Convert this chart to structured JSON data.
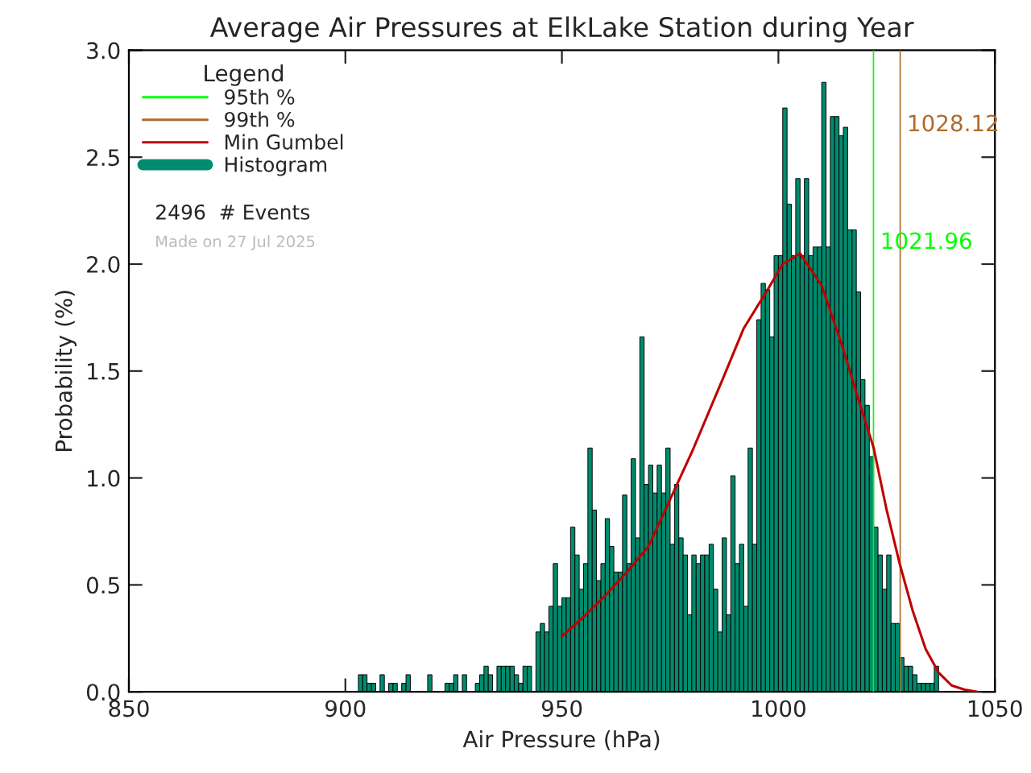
{
  "chart_data": {
    "type": "histogram",
    "title": "Average Air Pressures at ElkLake Station during Year",
    "xlabel": "Air Pressure (hPa)",
    "ylabel": "Probability (%)",
    "legend_title": "Legend",
    "legend": "top left",
    "grid": false,
    "xlim": [
      850,
      1050
    ],
    "xticks": [
      850,
      900,
      950,
      1000,
      1050
    ],
    "ylim": [
      0,
      3.0
    ],
    "yticks": [
      {
        "value": 0,
        "label": "0.0"
      },
      {
        "value": 0.5,
        "label": "0.5"
      },
      {
        "value": 1.0,
        "label": "1.0"
      },
      {
        "value": 1.5,
        "label": "1.5"
      },
      {
        "value": 2.0,
        "label": "2.0"
      },
      {
        "value": 2.5,
        "label": "2.5"
      },
      {
        "value": 3.0,
        "label": "3.0"
      }
    ],
    "series": [
      {
        "name": "95th %",
        "type": "line",
        "color": "#00ff00",
        "x": [
          1021.96,
          1021.96
        ],
        "values": [
          0,
          3.0
        ]
      },
      {
        "name": "99th %",
        "type": "line",
        "color": "#b06a28",
        "x": [
          1028.12,
          1028.12
        ],
        "values": [
          0,
          3.0
        ]
      },
      {
        "name": "Min Gumbel",
        "type": "line",
        "color": "#c00000",
        "x": [
          950,
          955,
          960,
          965,
          970,
          975,
          980,
          987.5,
          992,
          997.5,
          1001,
          1005,
          1010,
          1015,
          1018,
          1022,
          1025,
          1028,
          1031,
          1034,
          1037,
          1040,
          1043,
          1046
        ],
        "values": [
          0.26,
          0.35,
          0.45,
          0.56,
          0.68,
          0.9,
          1.12,
          1.48,
          1.7,
          1.88,
          2.0,
          2.05,
          1.9,
          1.6,
          1.4,
          1.14,
          0.85,
          0.6,
          0.38,
          0.2,
          0.09,
          0.03,
          0.01,
          0.0
        ]
      },
      {
        "name": "Histogram",
        "color": "#008b6e",
        "bins": [
          903,
          904,
          905,
          906,
          907,
          908,
          909,
          910,
          911,
          912,
          913,
          914,
          915,
          916,
          917,
          918,
          919,
          920,
          921,
          922,
          923,
          924,
          925,
          926,
          927,
          928,
          929,
          930,
          931,
          932,
          933,
          934,
          935,
          936,
          937,
          938,
          939,
          940,
          941,
          942,
          943,
          944,
          945,
          946,
          947,
          948,
          949,
          950,
          951,
          952,
          953,
          954,
          955,
          956,
          957,
          958,
          959,
          960,
          961,
          962,
          963,
          964,
          965,
          966,
          967,
          968,
          969,
          970,
          971,
          972,
          973,
          974,
          975,
          976,
          977,
          978,
          979,
          980,
          981,
          982,
          983,
          984,
          985,
          986,
          987,
          988,
          989,
          990,
          991,
          992,
          993,
          994,
          995,
          996,
          997,
          998,
          999,
          1000,
          1001,
          1002,
          1003,
          1004,
          1005,
          1006,
          1007,
          1008,
          1009,
          1010,
          1011,
          1012,
          1013,
          1014,
          1015,
          1016,
          1017,
          1018,
          1019,
          1020,
          1021,
          1022,
          1023,
          1024,
          1025,
          1026,
          1027,
          1028,
          1029,
          1030,
          1031,
          1032,
          1033,
          1034,
          1035,
          1036,
          1037
        ],
        "values": [
          0.08,
          0.08,
          0.04,
          0.04,
          0,
          0.08,
          0,
          0.04,
          0.04,
          0,
          0.04,
          0.08,
          0,
          0,
          0,
          0,
          0.08,
          0,
          0,
          0,
          0.04,
          0.04,
          0.08,
          0,
          0.08,
          0,
          0,
          0.04,
          0.08,
          0.12,
          0.08,
          0,
          0.12,
          0.12,
          0.12,
          0.12,
          0.08,
          0.04,
          0.12,
          0.12,
          0,
          0.28,
          0.32,
          0.28,
          0.4,
          0.6,
          0.4,
          0.44,
          0.44,
          0.77,
          0.64,
          0.48,
          0.6,
          1.14,
          0.85,
          0.52,
          0.6,
          0.81,
          0.68,
          0.56,
          0.56,
          0.92,
          0.6,
          1.09,
          0.72,
          1.66,
          0.97,
          1.06,
          0.93,
          1.06,
          0.93,
          1.14,
          0.69,
          0.97,
          0.72,
          0.64,
          0.36,
          0.64,
          0.6,
          0.64,
          0.64,
          0.69,
          0.48,
          0.28,
          0.72,
          0.36,
          1.01,
          0.6,
          0.69,
          0.4,
          1.14,
          0.69,
          1.74,
          1.91,
          1.88,
          1.66,
          2.04,
          2.04,
          2.73,
          2.28,
          2.04,
          2.4,
          2.04,
          2.4,
          2.04,
          2.08,
          2.08,
          2.85,
          2.08,
          2.69,
          2.69,
          2.6,
          2.64,
          2.16,
          2.16,
          1.87,
          1.46,
          1.34,
          1.1,
          0.77,
          0.64,
          0.48,
          0.64,
          0.32,
          0.32,
          0.16,
          0.12,
          0.12,
          0.08,
          0.04,
          0.04,
          0.04,
          0.04,
          0.12
        ]
      }
    ],
    "annotations": [
      {
        "text": "1021.96",
        "x": 1021.96,
        "y": 2.1
      },
      {
        "text": "1028.12",
        "x": 1028.12,
        "y": 2.65
      },
      "2496  # Events",
      "Made on 27 Jul 2025"
    ]
  }
}
